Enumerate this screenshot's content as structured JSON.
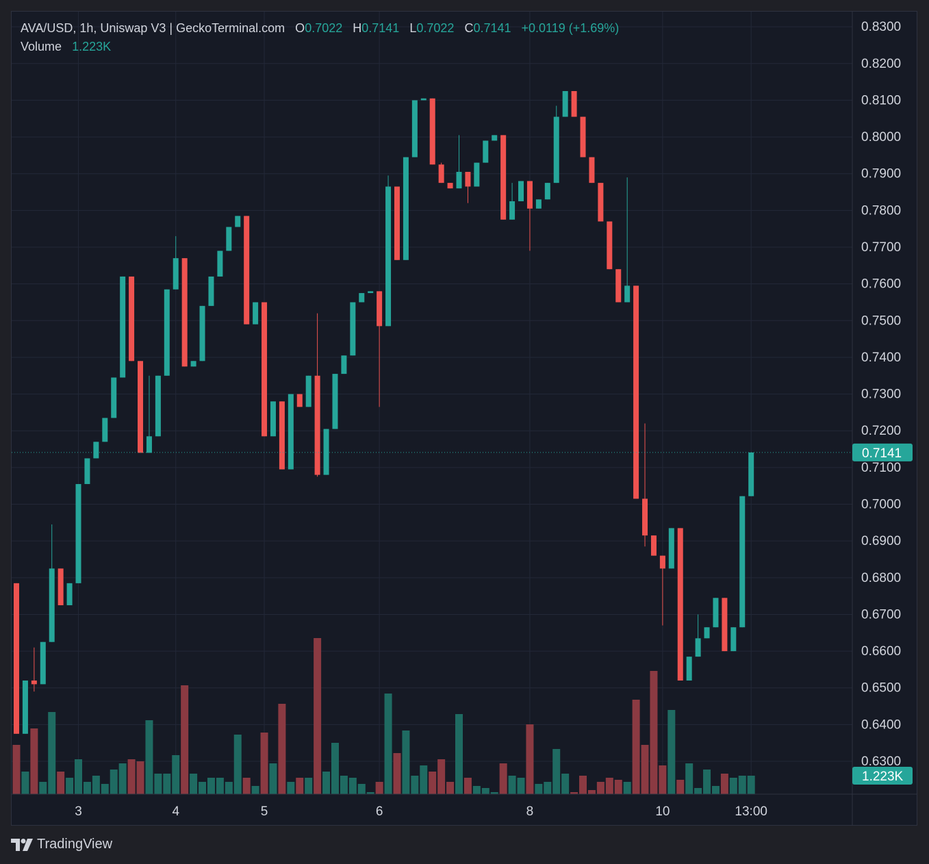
{
  "legend": {
    "symbol": "AVA/USD, 1h, Uniswap V3 | GeckoTerminal.com",
    "o_label": "O",
    "o_value": "0.7022",
    "h_label": "H",
    "h_value": "0.7141",
    "l_label": "L",
    "l_value": "0.7022",
    "c_label": "C",
    "c_value": "0.7141",
    "change": "+0.0119 (+1.69%)",
    "volume_label": "Volume",
    "volume_value": "1.223K"
  },
  "footer": {
    "brand": "TradingView",
    "logo_icon": "tradingview-logo-icon"
  },
  "colors": {
    "up": "#26a69a",
    "down": "#ef5350",
    "up_volume": "#1f6b62",
    "down_volume": "#8b3a42",
    "background": "#161a25",
    "grid": "#232838",
    "text": "#d1d4dc"
  },
  "chart_data": {
    "type": "candlestick",
    "title": "AVA/USD, 1h, Uniswap V3 | GeckoTerminal.com",
    "ylim": [
      0.6205,
      0.8345
    ],
    "y_ticks": [
      "0.8300",
      "0.8200",
      "0.8100",
      "0.8000",
      "0.7900",
      "0.7800",
      "0.7700",
      "0.7600",
      "0.7500",
      "0.7400",
      "0.7300",
      "0.7200",
      "0.7100",
      "0.7000",
      "0.6900",
      "0.6800",
      "0.6700",
      "0.6600",
      "0.6500",
      "0.6400",
      "0.6300"
    ],
    "x_ticks": [
      {
        "label": "3",
        "index": 7
      },
      {
        "label": "4",
        "index": 18
      },
      {
        "label": "5",
        "index": 28
      },
      {
        "label": "6",
        "index": 41
      },
      {
        "label": "8",
        "index": 58
      },
      {
        "label": "10",
        "index": 73
      },
      {
        "label": "13:00",
        "index": 83
      }
    ],
    "last_price_label": "0.7141",
    "volume_label": "1.223K",
    "candles": [
      [
        0.6785,
        0.6785,
        0.6375,
        0.6375
      ],
      [
        0.6375,
        0.652,
        0.6375,
        0.652
      ],
      [
        0.652,
        0.661,
        0.649,
        0.651
      ],
      [
        0.651,
        0.6625,
        0.651,
        0.6625
      ],
      [
        0.6625,
        0.6945,
        0.6625,
        0.6825
      ],
      [
        0.6825,
        0.6825,
        0.6725,
        0.6725
      ],
      [
        0.6725,
        0.6785,
        0.6725,
        0.6785
      ],
      [
        0.6785,
        0.7055,
        0.6785,
        0.7055
      ],
      [
        0.7055,
        0.7125,
        0.7055,
        0.7125
      ],
      [
        0.7125,
        0.717,
        0.7125,
        0.717
      ],
      [
        0.717,
        0.7235,
        0.717,
        0.7235
      ],
      [
        0.7235,
        0.7345,
        0.7235,
        0.7345
      ],
      [
        0.7345,
        0.762,
        0.7345,
        0.762
      ],
      [
        0.762,
        0.762,
        0.739,
        0.739
      ],
      [
        0.739,
        0.739,
        0.714,
        0.714
      ],
      [
        0.714,
        0.735,
        0.714,
        0.7185
      ],
      [
        0.7185,
        0.735,
        0.7185,
        0.735
      ],
      [
        0.735,
        0.7585,
        0.735,
        0.7585
      ],
      [
        0.7585,
        0.773,
        0.7585,
        0.767
      ],
      [
        0.767,
        0.767,
        0.7375,
        0.7375
      ],
      [
        0.7375,
        0.739,
        0.7375,
        0.739
      ],
      [
        0.739,
        0.754,
        0.739,
        0.754
      ],
      [
        0.754,
        0.762,
        0.754,
        0.762
      ],
      [
        0.762,
        0.769,
        0.762,
        0.769
      ],
      [
        0.769,
        0.7755,
        0.769,
        0.7755
      ],
      [
        0.7755,
        0.7785,
        0.7755,
        0.7785
      ],
      [
        0.7785,
        0.7785,
        0.749,
        0.749
      ],
      [
        0.749,
        0.755,
        0.749,
        0.755
      ],
      [
        0.755,
        0.755,
        0.7185,
        0.7185
      ],
      [
        0.7185,
        0.728,
        0.7185,
        0.728
      ],
      [
        0.728,
        0.728,
        0.7095,
        0.7095
      ],
      [
        0.7095,
        0.73,
        0.7095,
        0.73
      ],
      [
        0.73,
        0.73,
        0.7265,
        0.7265
      ],
      [
        0.7265,
        0.735,
        0.7265,
        0.735
      ],
      [
        0.735,
        0.752,
        0.7075,
        0.708
      ],
      [
        0.708,
        0.7205,
        0.708,
        0.7205
      ],
      [
        0.7205,
        0.7355,
        0.7205,
        0.7355
      ],
      [
        0.7355,
        0.7405,
        0.7355,
        0.7405
      ],
      [
        0.7405,
        0.755,
        0.7405,
        0.755
      ],
      [
        0.755,
        0.7575,
        0.755,
        0.7575
      ],
      [
        0.7575,
        0.758,
        0.7575,
        0.758
      ],
      [
        0.758,
        0.758,
        0.7265,
        0.7485
      ],
      [
        0.7485,
        0.7895,
        0.7485,
        0.7865
      ],
      [
        0.7865,
        0.7865,
        0.7665,
        0.7665
      ],
      [
        0.7665,
        0.7945,
        0.7665,
        0.7945
      ],
      [
        0.7945,
        0.81,
        0.7945,
        0.81
      ],
      [
        0.81,
        0.8105,
        0.81,
        0.8105
      ],
      [
        0.8105,
        0.8105,
        0.7925,
        0.7925
      ],
      [
        0.7925,
        0.793,
        0.7875,
        0.7875
      ],
      [
        0.7875,
        0.7875,
        0.786,
        0.786
      ],
      [
        0.786,
        0.8005,
        0.786,
        0.7905
      ],
      [
        0.7905,
        0.7905,
        0.782,
        0.7865
      ],
      [
        0.7865,
        0.793,
        0.7865,
        0.793
      ],
      [
        0.793,
        0.799,
        0.793,
        0.799
      ],
      [
        0.799,
        0.8005,
        0.799,
        0.8005
      ],
      [
        0.8005,
        0.8005,
        0.7775,
        0.7775
      ],
      [
        0.7775,
        0.7875,
        0.7775,
        0.7825
      ],
      [
        0.7825,
        0.788,
        0.7825,
        0.788
      ],
      [
        0.788,
        0.788,
        0.769,
        0.7805
      ],
      [
        0.7805,
        0.783,
        0.7805,
        0.783
      ],
      [
        0.783,
        0.7875,
        0.783,
        0.7875
      ],
      [
        0.7875,
        0.8085,
        0.7875,
        0.8055
      ],
      [
        0.8055,
        0.8125,
        0.8055,
        0.8125
      ],
      [
        0.8125,
        0.8125,
        0.8055,
        0.8055
      ],
      [
        0.8055,
        0.8055,
        0.7945,
        0.7945
      ],
      [
        0.7945,
        0.7945,
        0.7875,
        0.7875
      ],
      [
        0.7875,
        0.7875,
        0.777,
        0.777
      ],
      [
        0.777,
        0.777,
        0.764,
        0.764
      ],
      [
        0.764,
        0.764,
        0.755,
        0.755
      ],
      [
        0.755,
        0.789,
        0.755,
        0.7595
      ],
      [
        0.7595,
        0.7595,
        0.7015,
        0.7015
      ],
      [
        0.7015,
        0.722,
        0.6885,
        0.6915
      ],
      [
        0.6915,
        0.6915,
        0.686,
        0.686
      ],
      [
        0.686,
        0.686,
        0.667,
        0.6825
      ],
      [
        0.6825,
        0.6935,
        0.6825,
        0.6935
      ],
      [
        0.6935,
        0.6935,
        0.652,
        0.652
      ],
      [
        0.652,
        0.6585,
        0.652,
        0.6585
      ],
      [
        0.6585,
        0.67,
        0.6585,
        0.6635
      ],
      [
        0.6635,
        0.6665,
        0.6635,
        0.6665
      ],
      [
        0.6665,
        0.6745,
        0.6665,
        0.6745
      ],
      [
        0.6745,
        0.6745,
        0.66,
        0.66
      ],
      [
        0.66,
        0.6665,
        0.66,
        0.6665
      ],
      [
        0.6665,
        0.7022,
        0.6665,
        0.7022
      ],
      [
        0.7022,
        0.7141,
        0.7022,
        0.7141
      ]
    ],
    "volumes_relative": [
      0.24,
      0.11,
      0.32,
      0.06,
      0.4,
      0.11,
      0.08,
      0.17,
      0.06,
      0.09,
      0.05,
      0.12,
      0.15,
      0.17,
      0.16,
      0.36,
      0.1,
      0.1,
      0.19,
      0.53,
      0.1,
      0.06,
      0.08,
      0.08,
      0.06,
      0.29,
      0.08,
      0.04,
      0.3,
      0.15,
      0.44,
      0.06,
      0.08,
      0.08,
      0.76,
      0.11,
      0.25,
      0.09,
      0.08,
      0.05,
      0.01,
      0.06,
      0.49,
      0.2,
      0.31,
      0.09,
      0.14,
      0.11,
      0.17,
      0.06,
      0.39,
      0.08,
      0.04,
      0.03,
      0.01,
      0.15,
      0.09,
      0.08,
      0.34,
      0.05,
      0.06,
      0.22,
      0.1,
      0.01,
      0.09,
      0.02,
      0.06,
      0.08,
      0.07,
      0.06,
      0.46,
      0.24,
      0.6,
      0.14,
      0.41,
      0.07,
      0.15,
      0.03,
      0.12,
      0.04,
      0.1,
      0.08,
      0.09,
      0.09
    ]
  }
}
